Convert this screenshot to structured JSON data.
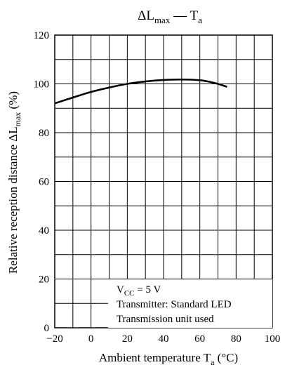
{
  "chart_data": {
    "type": "line",
    "title": {
      "main": "ΔL",
      "sub": "max",
      "sep": " — ",
      "main2": "T",
      "sub2": "a"
    },
    "xlabel": {
      "main": "Ambient temperature  T",
      "sub": "a",
      "unit": "  (°C)"
    },
    "ylabel": {
      "main": "Relative reception distance  ΔL",
      "sub": "max",
      "unit": "  (%)"
    },
    "xlim": [
      -20,
      100
    ],
    "ylim": [
      0,
      120
    ],
    "xticks": [
      -20,
      0,
      20,
      40,
      60,
      80,
      100
    ],
    "xtick_labels": [
      "−20",
      "0",
      "20",
      "40",
      "60",
      "80",
      "100"
    ],
    "yticks": [
      0,
      20,
      40,
      60,
      80,
      100,
      120
    ],
    "ytick_labels": [
      "0",
      "20",
      "40",
      "60",
      "80",
      "100",
      "120"
    ],
    "grid": {
      "x_step": 10,
      "y_step": 10
    },
    "series": [
      {
        "x": [
          -20,
          -10,
          0,
          10,
          20,
          30,
          40,
          50,
          60,
          65,
          70,
          75
        ],
        "y": [
          92,
          94.4,
          96.7,
          98.5,
          100,
          101,
          101.6,
          101.8,
          101.5,
          100.9,
          100,
          98.8
        ]
      }
    ],
    "annotation": {
      "line1_main": "V",
      "line1_sub": "CC",
      "line1_rest": " = 5 V",
      "line2": "Transmitter: Standard LED",
      "line3": "Transmission unit used"
    }
  }
}
